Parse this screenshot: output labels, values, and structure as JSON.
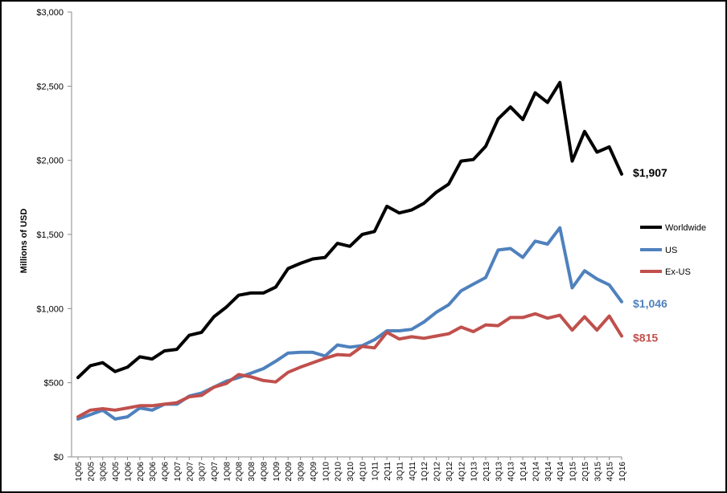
{
  "chart_data": {
    "type": "line",
    "ylabel": "Millions of USD",
    "ylim": [
      0,
      3000
    ],
    "y_ticks": [
      "$0",
      "$500",
      "$1,000",
      "$1,500",
      "$2,000",
      "$2,500",
      "$3,000"
    ],
    "y_tick_values": [
      0,
      500,
      1000,
      1500,
      2000,
      2500,
      3000
    ],
    "grid": false,
    "legend": "right",
    "x": [
      "1Q05",
      "2Q05",
      "3Q05",
      "4Q05",
      "1Q06",
      "2Q06",
      "3Q06",
      "4Q06",
      "1Q07",
      "2Q07",
      "3Q07",
      "4Q07",
      "1Q08",
      "2Q08",
      "3Q08",
      "4Q08",
      "1Q09",
      "2Q09",
      "3Q09",
      "4Q09",
      "1Q10",
      "2Q10",
      "3Q10",
      "4Q10",
      "1Q11",
      "2Q11",
      "3Q11",
      "4Q11",
      "1Q12",
      "2Q12",
      "3Q12",
      "4Q12",
      "1Q13",
      "2Q13",
      "3Q13",
      "4Q13",
      "1Q14",
      "2Q14",
      "3Q14",
      "4Q14",
      "1Q15",
      "2Q15",
      "3Q15",
      "4Q15",
      "1Q16"
    ],
    "series": [
      {
        "name": "Worldwide",
        "color": "#000000",
        "end_label": "$1,907",
        "values": [
          535,
          615,
          635,
          575,
          605,
          675,
          660,
          715,
          725,
          820,
          840,
          945,
          1010,
          1090,
          1105,
          1105,
          1145,
          1270,
          1305,
          1335,
          1345,
          1440,
          1420,
          1500,
          1520,
          1690,
          1645,
          1665,
          1710,
          1785,
          1840,
          1995,
          2005,
          2095,
          2280,
          2360,
          2275,
          2455,
          2390,
          2525,
          1995,
          2195,
          2055,
          2090,
          1907
        ]
      },
      {
        "name": "US",
        "color": "#4f81bd",
        "end_label": "$1,046",
        "values": [
          255,
          285,
          315,
          255,
          270,
          330,
          315,
          355,
          355,
          410,
          430,
          470,
          510,
          535,
          565,
          595,
          645,
          700,
          705,
          705,
          680,
          755,
          740,
          750,
          790,
          850,
          850,
          860,
          910,
          975,
          1025,
          1120,
          1165,
          1210,
          1395,
          1405,
          1345,
          1455,
          1435,
          1545,
          1140,
          1255,
          1200,
          1160,
          1046
        ]
      },
      {
        "name": "Ex-US",
        "color": "#c0504d",
        "end_label": "$815",
        "values": [
          270,
          315,
          325,
          315,
          330,
          345,
          345,
          355,
          365,
          405,
          415,
          470,
          495,
          555,
          540,
          515,
          505,
          570,
          605,
          635,
          665,
          690,
          685,
          745,
          735,
          840,
          795,
          810,
          800,
          815,
          830,
          875,
          845,
          890,
          885,
          940,
          940,
          965,
          935,
          955,
          855,
          945,
          855,
          950,
          815
        ]
      }
    ]
  }
}
